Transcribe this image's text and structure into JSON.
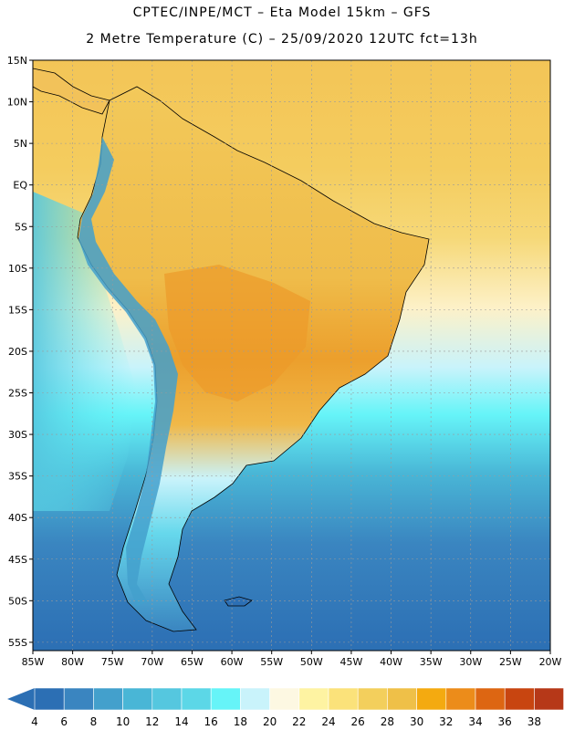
{
  "header": {
    "line1": "CPTEC/INPE/MCT –  Eta Model 15km – GFS",
    "line2": "2 Metre Temperature (C) – 25/09/2020 12UTC fct=13h"
  },
  "map": {
    "lat_ticks": [
      "15N",
      "10N",
      "5N",
      "EQ",
      "5S",
      "10S",
      "15S",
      "20S",
      "25S",
      "30S",
      "35S",
      "40S",
      "45S",
      "50S",
      "55S"
    ],
    "lon_ticks": [
      "85W",
      "80W",
      "75W",
      "70W",
      "65W",
      "60W",
      "55W",
      "50W",
      "45W",
      "40W",
      "35W",
      "30W",
      "25W",
      "20W"
    ],
    "lat_range": [
      15,
      -56
    ],
    "lon_range": [
      -85,
      -20
    ]
  },
  "colorbar": {
    "labels": [
      "4",
      "6",
      "8",
      "10",
      "12",
      "14",
      "16",
      "18",
      "20",
      "22",
      "24",
      "26",
      "28",
      "30",
      "32",
      "34",
      "36",
      "38"
    ],
    "colors": [
      "#2c6fb4",
      "#3a85c0",
      "#43a0cc",
      "#49b6d6",
      "#55c7df",
      "#5cd7e7",
      "#66f4f8",
      "#c9f3fb",
      "#fdf8e2",
      "#fef3a2",
      "#fbe27a",
      "#f3cf5c",
      "#efc048",
      "#f4aa10",
      "#ec8c1a",
      "#dd6612",
      "#c84510",
      "#b63818"
    ],
    "left_arrow_color": "#2c6fb4",
    "right_arrow_color": "#b63818"
  },
  "colors": {
    "ocean_warm": "#f3c557",
    "ocean_cool": "#55c7df",
    "ocean_cold": "#2c6fb4",
    "land": "#f2c25a",
    "land_hot": "#ec9a2a",
    "andes": "#43a0cc"
  }
}
